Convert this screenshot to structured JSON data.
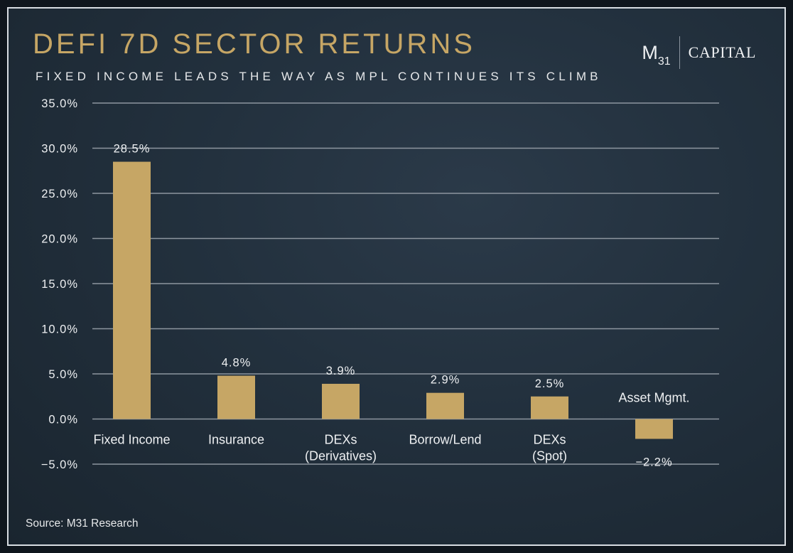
{
  "header": {
    "title": "DEFI 7D SECTOR RETURNS",
    "subtitle": "FIXED INCOME LEADS THE WAY AS MPL CONTINUES ITS CLIMB"
  },
  "logo": {
    "m": "M",
    "sub": "31",
    "capital": "CAPITAL"
  },
  "source": "Source: M31 Research",
  "colors": {
    "bar": "#c6a665",
    "title": "#c6a665",
    "grid": "#8d969f",
    "text": "#eef0f2"
  },
  "chart_data": {
    "type": "bar",
    "title": "DEFI 7D SECTOR RETURNS",
    "subtitle": "FIXED INCOME LEADS THE WAY AS MPL CONTINUES ITS CLIMB",
    "categories": [
      [
        "Fixed Income"
      ],
      [
        "Insurance"
      ],
      [
        "DEXs",
        "(Derivatives)"
      ],
      [
        "Borrow/Lend"
      ],
      [
        "DEXs",
        "(Spot)"
      ],
      [
        "Asset Mgmt."
      ]
    ],
    "values": [
      28.5,
      4.8,
      3.9,
      2.9,
      2.5,
      -2.2
    ],
    "data_labels": [
      "28.5%",
      "4.8%",
      "3.9%",
      "2.9%",
      "2.5%",
      "−2.2%"
    ],
    "y_ticks": [
      35,
      30,
      25,
      20,
      15,
      10,
      5,
      0,
      -5
    ],
    "y_tick_labels": [
      "35.0%",
      "30.0%",
      "25.0%",
      "20.0%",
      "15.0%",
      "10.0%",
      "5.0%",
      "0.0%",
      "−5.0%"
    ],
    "ylim": [
      -5,
      35
    ],
    "xlabel": "",
    "ylabel": "",
    "grid": true,
    "legend": "none"
  }
}
